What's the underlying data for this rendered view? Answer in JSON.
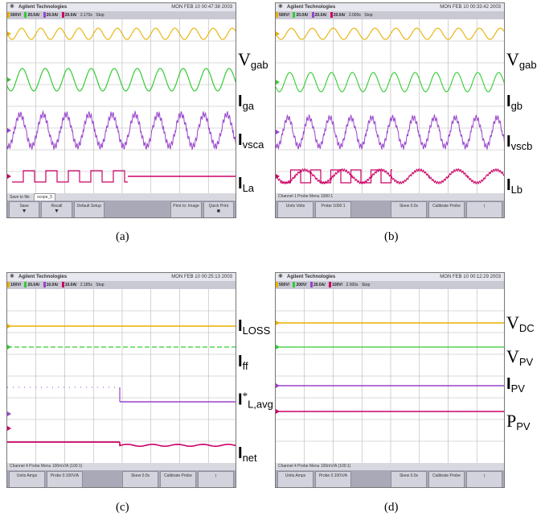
{
  "figure": {
    "panels": [
      {
        "id": "a",
        "caption": "(a)",
        "brand": "Agilent Technologies",
        "datetime": "MON FEB 10 00:47:38 2003",
        "channels": [
          "500V/",
          "20.0A/",
          "20.0A/",
          "20.0A/"
        ],
        "timebase": "2.170s",
        "trigger": "Stop",
        "status_label": "Save to file",
        "status_field": "scope_5",
        "softkeys": [
          "Save",
          "Recall",
          "Default Setup",
          "",
          "",
          "Print to: Image",
          "Quick Print"
        ],
        "trace_labels": [
          {
            "main": "V",
            "sub": "gab"
          },
          {
            "main": "I",
            "sub": "ga"
          },
          {
            "main": "I",
            "sub": "vsca"
          },
          {
            "main": "I",
            "sub": "La"
          }
        ]
      },
      {
        "id": "b",
        "caption": "(b)",
        "brand": "Agilent Technologies",
        "datetime": "MON FEB 10 00:33:42 2003",
        "channels": [
          "500V/",
          "20.0A/",
          "20.0A/",
          "20.0A/"
        ],
        "timebase": "2.000s",
        "trigger": "Stop",
        "status_label": "Channel 1 Probe Menu 1000:1",
        "status_field": "",
        "softkeys": [
          "Units Volts",
          "Probe 1000:1",
          "",
          "Skew 0.0s",
          "Calibrate Probe",
          "↑"
        ],
        "trace_labels": [
          {
            "main": "V",
            "sub": "gab"
          },
          {
            "main": "I",
            "sub": "gb"
          },
          {
            "main": "I",
            "sub": "vscb"
          },
          {
            "main": "I",
            "sub": "Lb"
          }
        ]
      },
      {
        "id": "c",
        "caption": "(c)",
        "brand": "Agilent Technologies",
        "datetime": "MON FEB 10 00:25:13 2003",
        "channels": [
          "100V/",
          "20.0A/",
          "10.0A/",
          "10.0A/"
        ],
        "timebase": "2.185s",
        "trigger": "Stop",
        "status_label": "Channel 4 Probe Menu 100mV/A (100:1)",
        "status_field": "",
        "softkeys": [
          "Units Amps",
          "Probe 0.100V/A",
          "",
          "Skew 0.0s",
          "Calibrate Probe",
          "↑"
        ],
        "trace_labels": [
          {
            "main": "I",
            "sub": "LOSS",
            "sup": ""
          },
          {
            "main": "I",
            "sub": "ff",
            "sup": ""
          },
          {
            "main": "I",
            "sub": "L,avg",
            "sup": "*"
          },
          {
            "main": "I",
            "sub": "net",
            "sup": ""
          }
        ]
      },
      {
        "id": "d",
        "caption": "(d)",
        "brand": "Agilent Technologies",
        "datetime": "MON FEB 10 00:12:29 2003",
        "channels": [
          "500V/",
          "200V/",
          "20.0A/",
          "100V/"
        ],
        "timebase": "2.000s",
        "trigger": "Stop",
        "status_label": "Channel 4 Probe Menu 100mV/A (100:1)",
        "status_field": "",
        "softkeys": [
          "Units Amps",
          "Probe 0.100V/A",
          "",
          "Skew 0.0s",
          "Calibrate Probe",
          "↑"
        ],
        "trace_labels": [
          {
            "main": "V",
            "sub": "DC"
          },
          {
            "main": "V",
            "sub": "PV"
          },
          {
            "main": "I",
            "sub": "PV"
          },
          {
            "main": "P",
            "sub": "PV"
          }
        ]
      }
    ],
    "trace_colors": {
      "ch1": "#e8b000",
      "ch2": "#33cc33",
      "ch3": "#9944cc",
      "ch4": "#cc0066"
    }
  }
}
